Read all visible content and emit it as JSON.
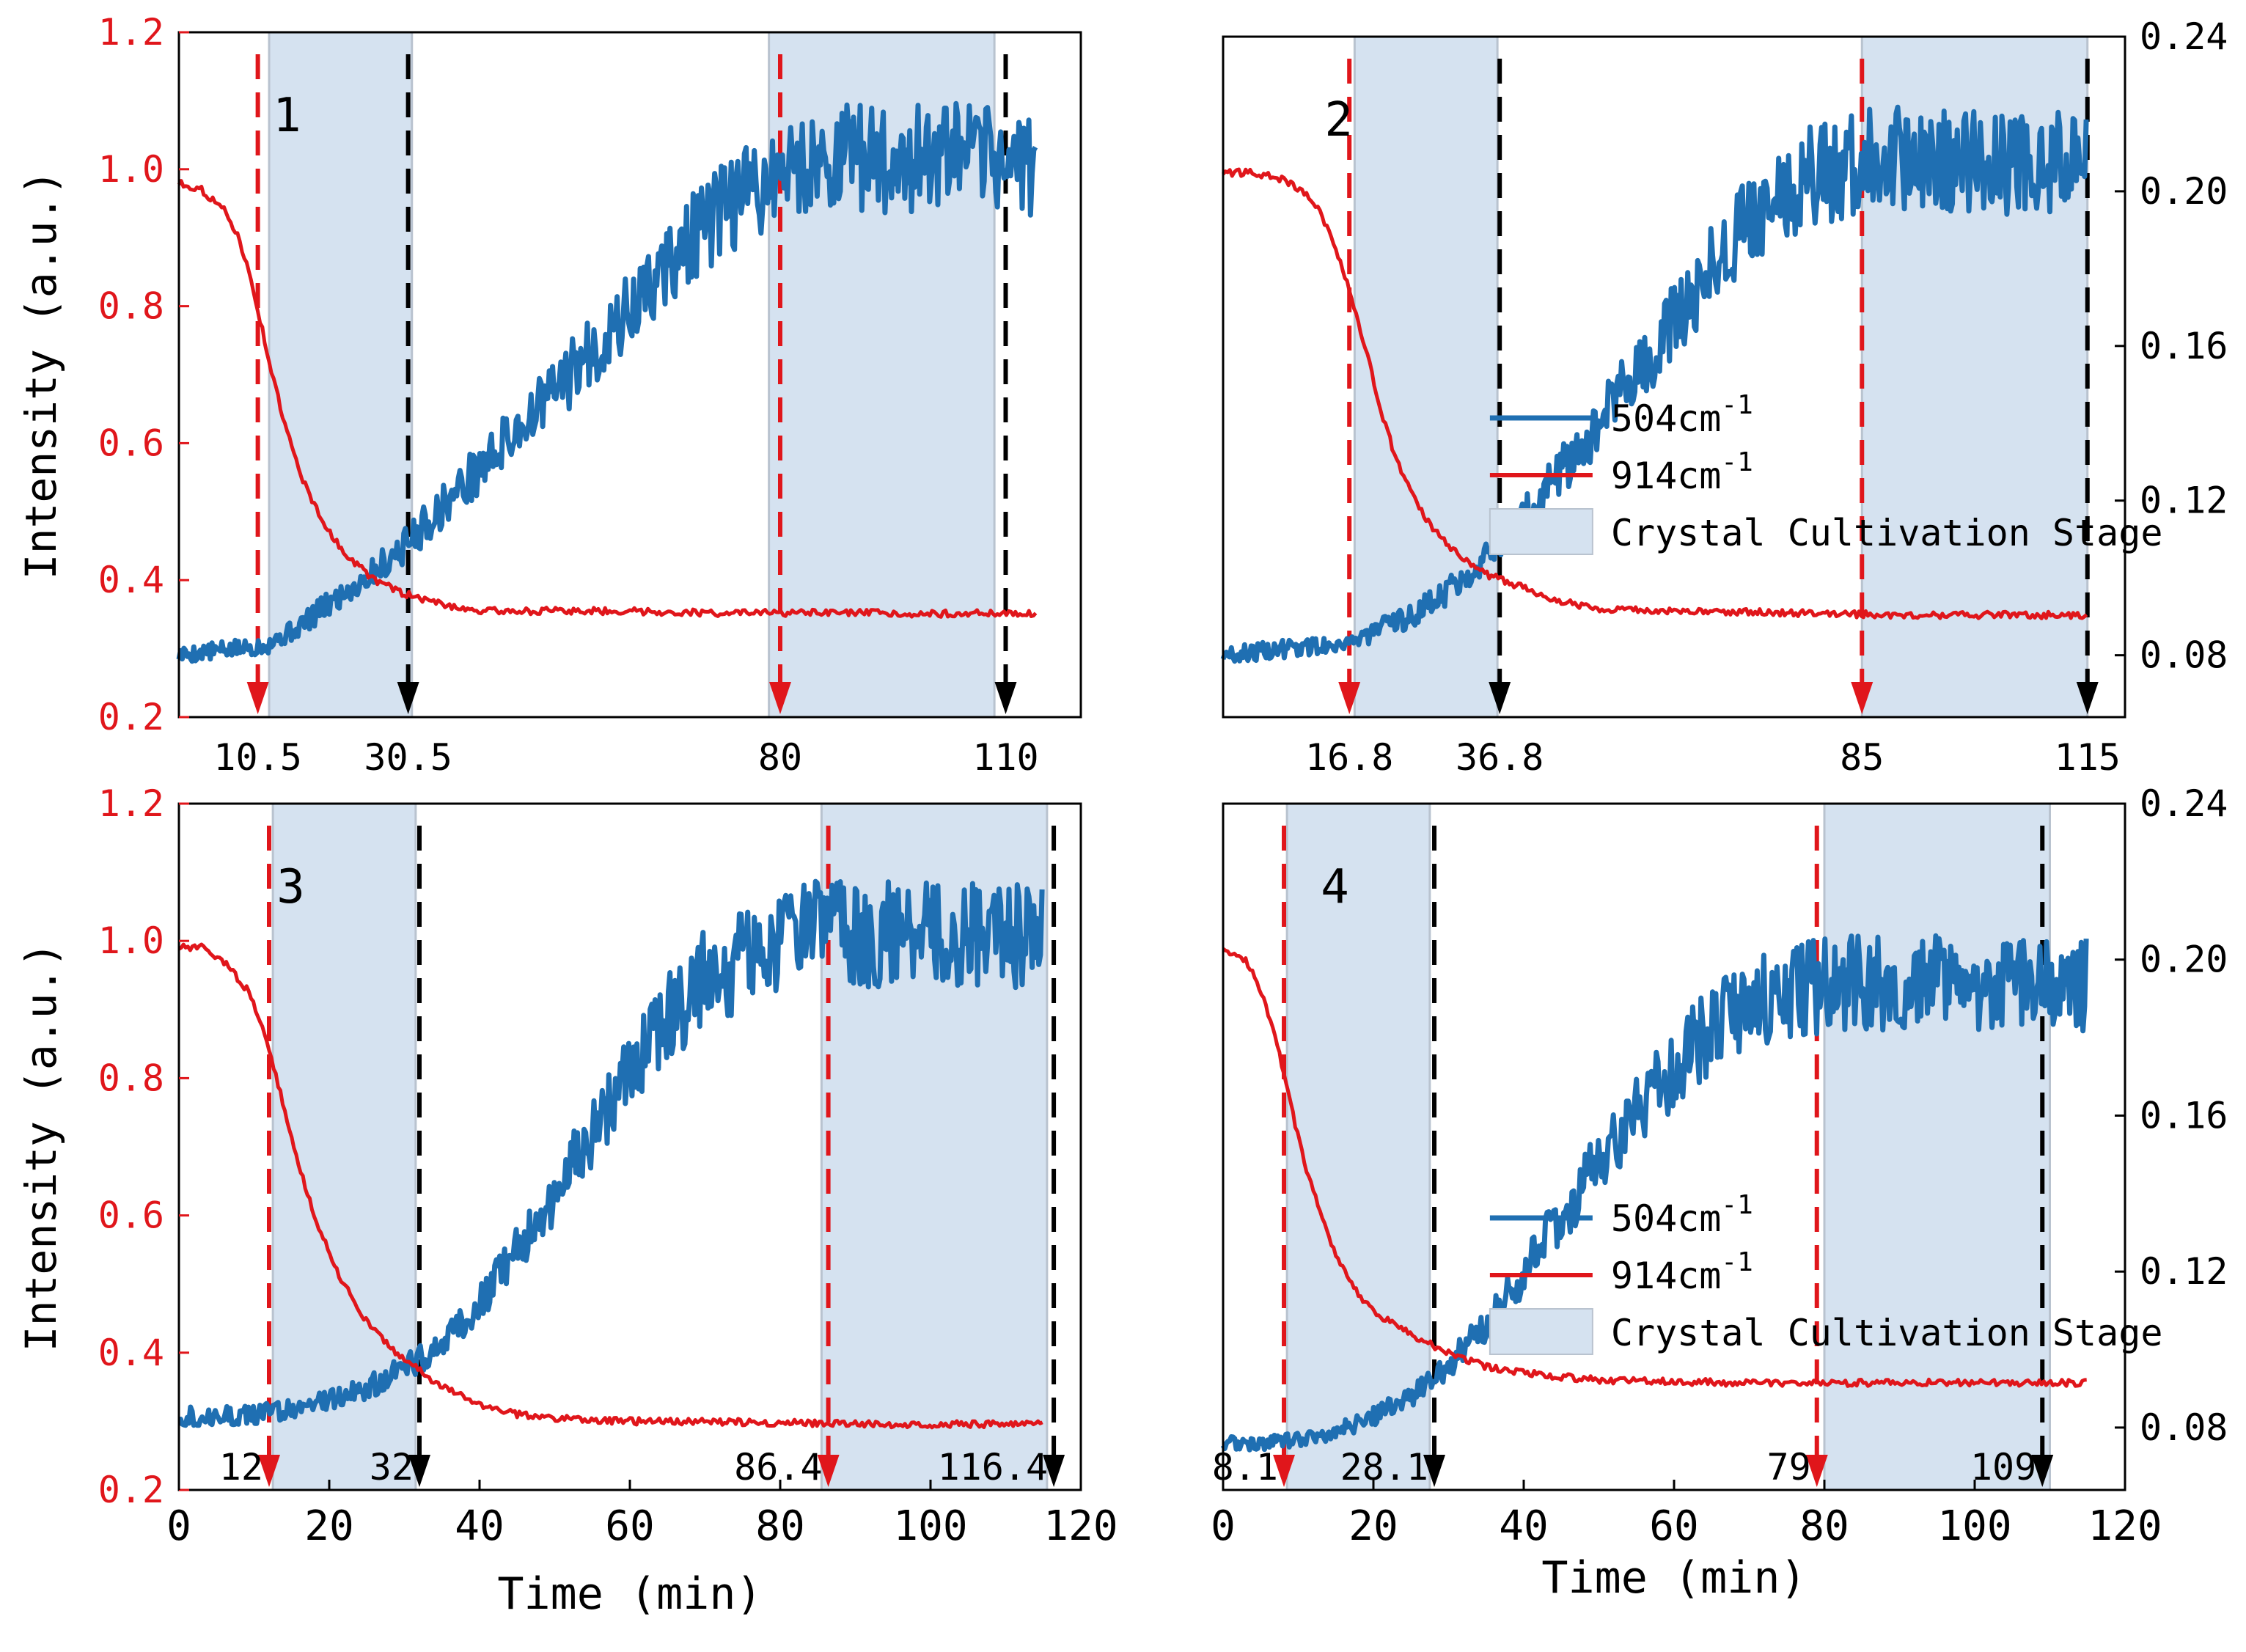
{
  "figure": {
    "colors": {
      "red_axis": "#e0161b",
      "blue_series": "#1f6fb2",
      "red_series": "#e0161b",
      "shade": "#d5e2f0",
      "shade_edge": "#b9c3cf",
      "black": "#000000"
    }
  },
  "chart_data": [
    {
      "type": "line",
      "panel_label": "1",
      "xlabel": "",
      "ylabel": "Intensity (a.u.)",
      "xlim": [
        0,
        120
      ],
      "ylim_left": [
        0.2,
        1.2
      ],
      "ylim_right": [
        0.064,
        0.24
      ],
      "left_ticks": [
        "0.2",
        "0.4",
        "0.6",
        "0.8",
        "1.0",
        "1.2"
      ],
      "right_ticks": [],
      "x_ticks": [],
      "marker_labels": [
        "10.5",
        "30.5",
        "80",
        "110"
      ],
      "red_markers": [
        10.5,
        80
      ],
      "black_markers": [
        30.5,
        110
      ],
      "shaded_regions": [
        [
          12,
          31
        ],
        [
          78.5,
          108.5
        ]
      ],
      "legend": null,
      "series": [
        {
          "name": "504cm-1",
          "axis": "right",
          "x": [
            0,
            5,
            10,
            12,
            15,
            20,
            25,
            30,
            35,
            40,
            45,
            50,
            55,
            60,
            65,
            70,
            75,
            80,
            85,
            90,
            95,
            100,
            105,
            110,
            114
          ],
          "values": [
            0.08,
            0.081,
            0.082,
            0.083,
            0.086,
            0.093,
            0.1,
            0.108,
            0.118,
            0.128,
            0.138,
            0.148,
            0.158,
            0.168,
            0.18,
            0.19,
            0.198,
            0.204,
            0.207,
            0.208,
            0.207,
            0.208,
            0.208,
            0.207,
            0.206
          ]
        },
        {
          "name": "914cm-1",
          "axis": "left",
          "x": [
            0,
            3,
            6,
            8,
            10,
            12,
            14,
            16,
            18,
            20,
            22,
            24,
            26,
            28,
            30,
            35,
            40,
            50,
            60,
            70,
            80,
            90,
            100,
            110,
            114
          ],
          "values": [
            0.98,
            0.97,
            0.94,
            0.9,
            0.82,
            0.72,
            0.63,
            0.56,
            0.51,
            0.47,
            0.44,
            0.42,
            0.4,
            0.39,
            0.38,
            0.365,
            0.355,
            0.355,
            0.355,
            0.352,
            0.352,
            0.352,
            0.351,
            0.352,
            0.351
          ]
        }
      ]
    },
    {
      "type": "line",
      "panel_label": "2",
      "xlabel": "",
      "ylabel": "",
      "xlim": [
        0,
        120
      ],
      "ylim_left": [
        0.2,
        1.2
      ],
      "ylim_right": [
        0.064,
        0.24
      ],
      "left_ticks": [],
      "right_ticks": [
        "0.08",
        "0.12",
        "0.16",
        "0.20",
        "0.24"
      ],
      "x_ticks": [],
      "marker_labels": [
        "16.8",
        "36.8",
        "85",
        "115"
      ],
      "red_markers": [
        16.8,
        85
      ],
      "black_markers": [
        36.8,
        115
      ],
      "shaded_regions": [
        [
          17.5,
          36.5
        ],
        [
          85,
          115
        ]
      ],
      "legend": {
        "entries": [
          "504cm",
          "914cm",
          "Crystal Cultivation Stage"
        ],
        "superscript": "-1"
      },
      "series": [
        {
          "name": "504cm-1",
          "axis": "right",
          "x": [
            0,
            5,
            10,
            15,
            18,
            20,
            25,
            30,
            35,
            40,
            45,
            50,
            55,
            60,
            65,
            70,
            75,
            80,
            85,
            90,
            95,
            100,
            105,
            110,
            115
          ],
          "values": [
            0.08,
            0.081,
            0.082,
            0.083,
            0.084,
            0.086,
            0.09,
            0.097,
            0.106,
            0.116,
            0.128,
            0.14,
            0.153,
            0.166,
            0.18,
            0.194,
            0.201,
            0.205,
            0.208,
            0.209,
            0.208,
            0.208,
            0.207,
            0.208,
            0.208
          ]
        },
        {
          "name": "914cm-1",
          "axis": "left",
          "x": [
            0,
            4,
            8,
            11,
            13,
            15,
            17,
            19,
            21,
            23,
            25,
            27,
            30,
            35,
            40,
            45,
            50,
            60,
            70,
            80,
            90,
            100,
            110,
            115
          ],
          "values": [
            1.0,
            1.0,
            0.99,
            0.97,
            0.94,
            0.89,
            0.82,
            0.74,
            0.65,
            0.58,
            0.53,
            0.49,
            0.45,
            0.41,
            0.39,
            0.37,
            0.36,
            0.355,
            0.355,
            0.352,
            0.35,
            0.35,
            0.35,
            0.35
          ]
        }
      ]
    },
    {
      "type": "line",
      "panel_label": "3",
      "xlabel": "Time (min)",
      "ylabel": "Intensity (a.u.)",
      "xlim": [
        0,
        120
      ],
      "ylim_left": [
        0.2,
        1.2
      ],
      "ylim_right": [
        0.064,
        0.24
      ],
      "left_ticks": [
        "0.2",
        "0.4",
        "0.6",
        "0.8",
        "1.0",
        "1.2"
      ],
      "right_ticks": [],
      "x_ticks": [
        "0",
        "20",
        "40",
        "60",
        "80",
        "100",
        "120"
      ],
      "marker_labels": [
        "12",
        "32",
        "86.4",
        "116.4"
      ],
      "red_markers": [
        12,
        86.4
      ],
      "black_markers": [
        32,
        116.4
      ],
      "shaded_regions": [
        [
          12.5,
          31.5
        ],
        [
          85.5,
          115.5
        ]
      ],
      "legend": null,
      "series": [
        {
          "name": "504cm-1",
          "axis": "right",
          "x": [
            0,
            5,
            10,
            15,
            20,
            25,
            30,
            35,
            40,
            45,
            50,
            55,
            60,
            65,
            70,
            75,
            80,
            85,
            90,
            95,
            100,
            105,
            110,
            115
          ],
          "values": [
            0.083,
            0.083,
            0.083,
            0.085,
            0.087,
            0.09,
            0.095,
            0.102,
            0.112,
            0.125,
            0.14,
            0.156,
            0.172,
            0.185,
            0.195,
            0.2,
            0.205,
            0.207,
            0.206,
            0.207,
            0.206,
            0.207,
            0.206,
            0.206
          ]
        },
        {
          "name": "914cm-1",
          "axis": "left",
          "x": [
            0,
            3,
            6,
            9,
            11,
            13,
            15,
            18,
            21,
            24,
            27,
            30,
            35,
            40,
            45,
            50,
            60,
            70,
            80,
            90,
            100,
            110,
            115
          ],
          "values": [
            0.99,
            0.99,
            0.97,
            0.93,
            0.88,
            0.8,
            0.71,
            0.6,
            0.52,
            0.46,
            0.42,
            0.39,
            0.35,
            0.325,
            0.31,
            0.305,
            0.3,
            0.3,
            0.298,
            0.296,
            0.296,
            0.296,
            0.296
          ]
        }
      ]
    },
    {
      "type": "line",
      "panel_label": "4",
      "xlabel": "Time (min)",
      "ylabel": "",
      "xlim": [
        0,
        120
      ],
      "ylim_left": [
        0.2,
        1.2
      ],
      "ylim_right": [
        0.064,
        0.24
      ],
      "left_ticks": [],
      "right_ticks": [
        "0.08",
        "0.12",
        "0.16",
        "0.20",
        "0.24"
      ],
      "x_ticks": [
        "0",
        "20",
        "40",
        "60",
        "80",
        "100",
        "120"
      ],
      "marker_labels": [
        "8.1",
        "28.1",
        "79",
        "109"
      ],
      "red_markers": [
        8.1,
        79
      ],
      "black_markers": [
        28.1,
        109
      ],
      "shaded_regions": [
        [
          8.5,
          27.5
        ],
        [
          80,
          110
        ]
      ],
      "legend": {
        "entries": [
          "504cm",
          "914cm",
          "Crystal Cultivation Stage"
        ],
        "superscript": "-1"
      },
      "series": [
        {
          "name": "504cm-1",
          "axis": "right",
          "x": [
            0,
            5,
            10,
            15,
            20,
            25,
            30,
            35,
            40,
            45,
            50,
            55,
            60,
            65,
            70,
            75,
            80,
            85,
            90,
            95,
            100,
            105,
            110,
            115
          ],
          "values": [
            0.076,
            0.076,
            0.077,
            0.079,
            0.083,
            0.088,
            0.096,
            0.106,
            0.12,
            0.134,
            0.148,
            0.16,
            0.172,
            0.182,
            0.188,
            0.192,
            0.193,
            0.194,
            0.193,
            0.194,
            0.193,
            0.194,
            0.193,
            0.193
          ]
        },
        {
          "name": "914cm-1",
          "axis": "left",
          "x": [
            0,
            3,
            5,
            7,
            9,
            11,
            13,
            15,
            17,
            20,
            23,
            26,
            30,
            35,
            40,
            45,
            50,
            60,
            70,
            80,
            90,
            100,
            110,
            115
          ],
          "values": [
            0.99,
            0.97,
            0.93,
            0.86,
            0.76,
            0.67,
            0.6,
            0.54,
            0.5,
            0.46,
            0.44,
            0.42,
            0.4,
            0.38,
            0.37,
            0.365,
            0.36,
            0.358,
            0.356,
            0.356,
            0.356,
            0.356,
            0.356,
            0.356
          ]
        }
      ]
    }
  ]
}
